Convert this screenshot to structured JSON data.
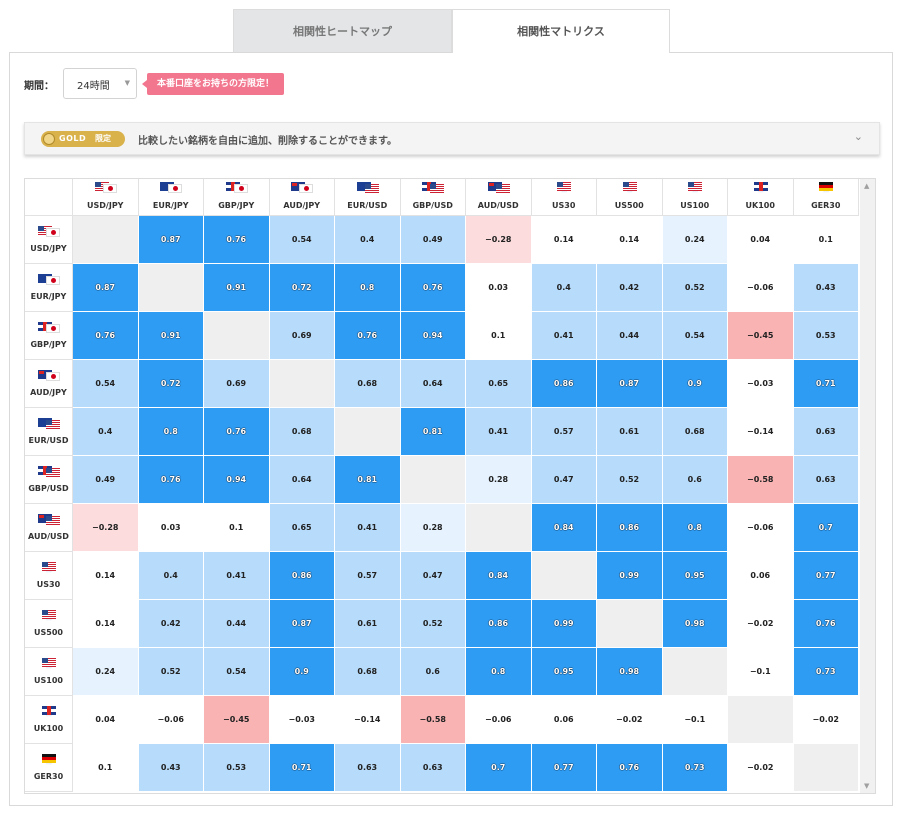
{
  "tabs": [
    {
      "label": "相関性ヒートマップ",
      "active": false
    },
    {
      "label": "相関性マトリクス",
      "active": true
    }
  ],
  "period": {
    "label": "期間：",
    "value": "24時間"
  },
  "promo_badge": "本番口座をお持ちの方限定！",
  "gold": {
    "badge": "GOLD",
    "limited": "限定",
    "text": "比較したい銘柄を自由に追加、削除することができます。"
  },
  "symbols": [
    {
      "label": "USD/JPY",
      "flags": [
        "us",
        "jp"
      ]
    },
    {
      "label": "EUR/JPY",
      "flags": [
        "eu",
        "jp"
      ]
    },
    {
      "label": "GBP/JPY",
      "flags": [
        "gb",
        "jp"
      ]
    },
    {
      "label": "AUD/JPY",
      "flags": [
        "au",
        "jp"
      ]
    },
    {
      "label": "EUR/USD",
      "flags": [
        "eu",
        "us"
      ]
    },
    {
      "label": "GBP/USD",
      "flags": [
        "gb",
        "us"
      ]
    },
    {
      "label": "AUD/USD",
      "flags": [
        "au",
        "us"
      ]
    },
    {
      "label": "US30",
      "flags": [
        "us"
      ]
    },
    {
      "label": "US500",
      "flags": [
        "us"
      ]
    },
    {
      "label": "US100",
      "flags": [
        "us"
      ]
    },
    {
      "label": "UK100",
      "flags": [
        "gb"
      ]
    },
    {
      "label": "GER30",
      "flags": [
        "de"
      ]
    }
  ],
  "matrix": [
    [
      null,
      0.87,
      0.76,
      0.54,
      0.4,
      0.49,
      -0.28,
      0.14,
      0.14,
      0.24,
      0.04,
      0.1
    ],
    [
      0.87,
      null,
      0.91,
      0.72,
      0.8,
      0.76,
      0.03,
      0.4,
      0.42,
      0.52,
      -0.06,
      0.43
    ],
    [
      0.76,
      0.91,
      null,
      0.69,
      0.76,
      0.94,
      0.1,
      0.41,
      0.44,
      0.54,
      -0.45,
      0.53
    ],
    [
      0.54,
      0.72,
      0.69,
      null,
      0.68,
      0.64,
      0.65,
      0.86,
      0.87,
      0.9,
      -0.03,
      0.71
    ],
    [
      0.4,
      0.8,
      0.76,
      0.68,
      null,
      0.81,
      0.41,
      0.57,
      0.61,
      0.68,
      -0.14,
      0.63
    ],
    [
      0.49,
      0.76,
      0.94,
      0.64,
      0.81,
      null,
      0.28,
      0.47,
      0.52,
      0.6,
      -0.58,
      0.63
    ],
    [
      -0.28,
      0.03,
      0.1,
      0.65,
      0.41,
      0.28,
      null,
      0.84,
      0.86,
      0.8,
      -0.06,
      0.7
    ],
    [
      0.14,
      0.4,
      0.41,
      0.86,
      0.57,
      0.47,
      0.84,
      null,
      0.99,
      0.95,
      0.06,
      0.77
    ],
    [
      0.14,
      0.42,
      0.44,
      0.87,
      0.61,
      0.52,
      0.86,
      0.99,
      null,
      0.98,
      -0.02,
      0.76
    ],
    [
      0.24,
      0.52,
      0.54,
      0.9,
      0.68,
      0.6,
      0.8,
      0.95,
      0.98,
      null,
      -0.1,
      0.73
    ],
    [
      0.04,
      -0.06,
      -0.45,
      -0.03,
      -0.14,
      -0.58,
      -0.06,
      0.06,
      -0.02,
      -0.1,
      null,
      -0.02
    ],
    [
      0.1,
      0.43,
      0.53,
      0.71,
      0.63,
      0.63,
      0.7,
      0.77,
      0.76,
      0.73,
      -0.02,
      null
    ]
  ],
  "colors": {
    "strong_positive": "#2f9cf4",
    "positive": "#b7dcfb",
    "weak_positive": "#e6f3fe",
    "neutral": "#ffffff",
    "weak_negative": "#fcdcdc",
    "negative": "#f9b3b3",
    "diagonal": "#efefef",
    "promo": "#f2768e",
    "gold": "#d9b24c"
  }
}
